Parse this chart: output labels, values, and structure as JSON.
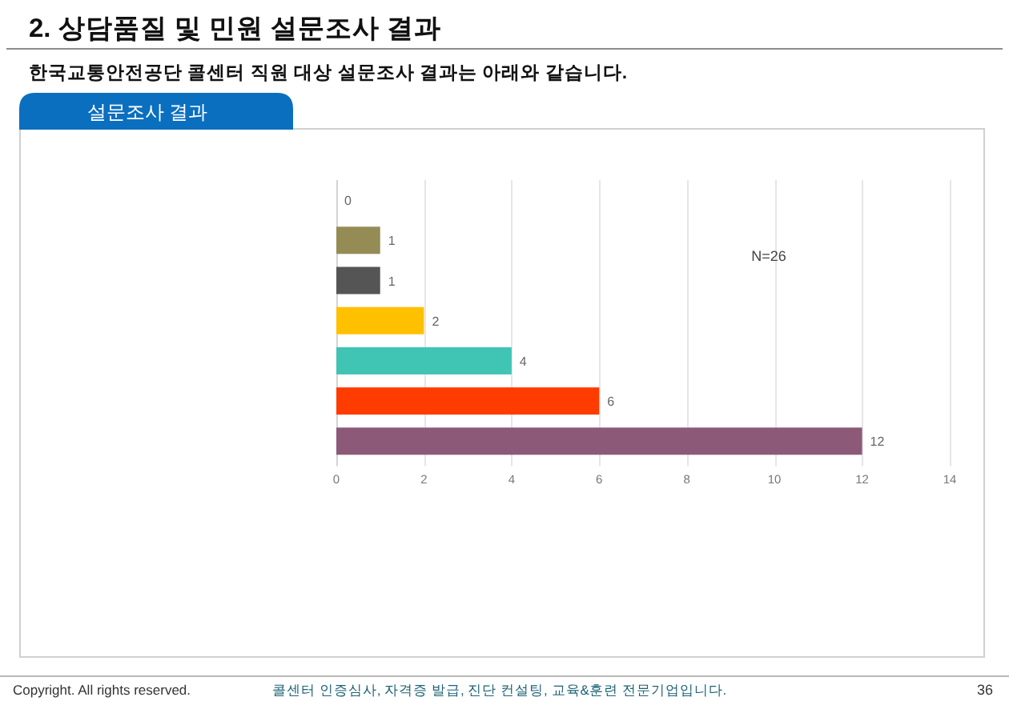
{
  "chart_data": {
    "type": "bar",
    "orientation": "horizontal",
    "title": "2. 상담품질 및 민원 설문조사 결과",
    "subtitle": "한국교통안전공단 콜센터 직원 대상 설문조사 결과는 아래와 같습니다.",
    "annotations": [
      "설문조사 결과",
      "Copyright. All rights reserved.",
      "콜센터 인증심사, 자격증 발급, 진단 컨설팅, 교육&훈련 전문기업입니다.",
      "36",
      "N=26"
    ],
    "categories": [
      null,
      null,
      null,
      null,
      null,
      null,
      null
    ],
    "values": [
      0,
      1,
      1,
      2,
      4,
      6,
      12
    ],
    "colors": [
      null,
      "#958b55",
      "#555555",
      "#ffc000",
      "#40c4b4",
      "#ff3c00",
      "#8c5a78"
    ],
    "xlim": [
      0,
      14
    ],
    "xticks": [
      0,
      2,
      4,
      6,
      8,
      10,
      12,
      14
    ],
    "grid": "x",
    "data_labels": true
  }
}
